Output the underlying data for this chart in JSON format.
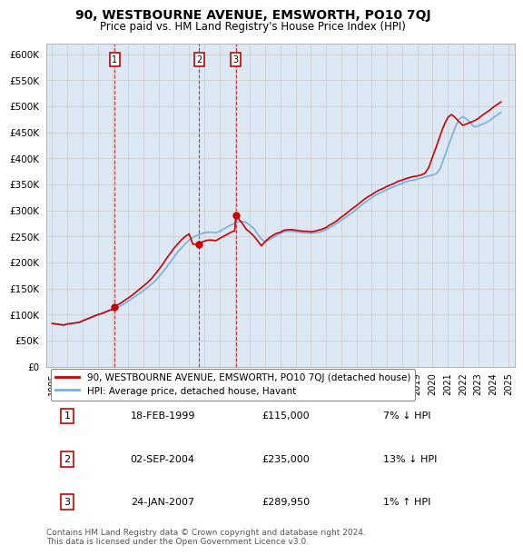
{
  "title": "90, WESTBOURNE AVENUE, EMSWORTH, PO10 7QJ",
  "subtitle": "Price paid vs. HM Land Registry's House Price Index (HPI)",
  "ylim": [
    0,
    620000
  ],
  "ytick_values": [
    0,
    50000,
    100000,
    150000,
    200000,
    250000,
    300000,
    350000,
    400000,
    450000,
    500000,
    550000,
    600000
  ],
  "sale_points": [
    {
      "year": 1999.12,
      "price": 115000,
      "label": "1"
    },
    {
      "year": 2004.67,
      "price": 235000,
      "label": "2"
    },
    {
      "year": 2007.07,
      "price": 289950,
      "label": "3"
    }
  ],
  "red_line_color": "#cc0000",
  "blue_line_color": "#7aaedc",
  "marker_box_color": "#cc0000",
  "grid_color": "#c8c8c8",
  "plot_bg_color": "#dce9f5",
  "legend_entries": [
    "90, WESTBOURNE AVENUE, EMSWORTH, PO10 7QJ (detached house)",
    "HPI: Average price, detached house, Havant"
  ],
  "table_rows": [
    {
      "num": "1",
      "date": "18-FEB-1999",
      "price": "£115,000",
      "hpi": "7% ↓ HPI"
    },
    {
      "num": "2",
      "date": "02-SEP-2004",
      "price": "£235,000",
      "hpi": "13% ↓ HPI"
    },
    {
      "num": "3",
      "date": "24-JAN-2007",
      "price": "£289,950",
      "hpi": "1% ↑ HPI"
    }
  ],
  "footnote": "Contains HM Land Registry data © Crown copyright and database right 2024.\nThis data is licensed under the Open Government Licence v3.0.",
  "years_hpi": [
    1995.0,
    1995.25,
    1995.5,
    1995.75,
    1996.0,
    1996.25,
    1996.5,
    1996.75,
    1997.0,
    1997.25,
    1997.5,
    1997.75,
    1998.0,
    1998.25,
    1998.5,
    1998.75,
    1999.0,
    1999.25,
    1999.5,
    1999.75,
    2000.0,
    2000.25,
    2000.5,
    2000.75,
    2001.0,
    2001.25,
    2001.5,
    2001.75,
    2002.0,
    2002.25,
    2002.5,
    2002.75,
    2003.0,
    2003.25,
    2003.5,
    2003.75,
    2004.0,
    2004.25,
    2004.5,
    2004.75,
    2005.0,
    2005.25,
    2005.5,
    2005.75,
    2006.0,
    2006.25,
    2006.5,
    2006.75,
    2007.0,
    2007.25,
    2007.5,
    2007.75,
    2008.0,
    2008.25,
    2008.5,
    2008.75,
    2009.0,
    2009.25,
    2009.5,
    2009.75,
    2010.0,
    2010.25,
    2010.5,
    2010.75,
    2011.0,
    2011.25,
    2011.5,
    2011.75,
    2012.0,
    2012.25,
    2012.5,
    2012.75,
    2013.0,
    2013.25,
    2013.5,
    2013.75,
    2014.0,
    2014.25,
    2014.5,
    2014.75,
    2015.0,
    2015.25,
    2015.5,
    2015.75,
    2016.0,
    2016.25,
    2016.5,
    2016.75,
    2017.0,
    2017.25,
    2017.5,
    2017.75,
    2018.0,
    2018.25,
    2018.5,
    2018.75,
    2019.0,
    2019.25,
    2019.5,
    2019.75,
    2020.0,
    2020.25,
    2020.5,
    2020.75,
    2021.0,
    2021.25,
    2021.5,
    2021.75,
    2022.0,
    2022.25,
    2022.5,
    2022.75,
    2023.0,
    2023.25,
    2023.5,
    2023.75,
    2024.0,
    2024.25,
    2024.5
  ],
  "hpi_values": [
    83000,
    82000,
    81000,
    80000,
    82000,
    83000,
    84000,
    85000,
    88000,
    91000,
    94000,
    97000,
    100000,
    102000,
    105000,
    108000,
    110000,
    113000,
    117000,
    121000,
    126000,
    131000,
    136000,
    141000,
    146000,
    152000,
    158000,
    164000,
    172000,
    181000,
    190000,
    200000,
    210000,
    220000,
    228000,
    236000,
    243000,
    248000,
    252000,
    255000,
    257000,
    258000,
    258000,
    257000,
    260000,
    264000,
    268000,
    272000,
    275000,
    278000,
    279000,
    277000,
    272000,
    265000,
    255000,
    245000,
    240000,
    243000,
    248000,
    252000,
    256000,
    259000,
    260000,
    260000,
    259000,
    258000,
    257000,
    257000,
    256000,
    257000,
    258000,
    260000,
    263000,
    267000,
    271000,
    276000,
    281000,
    286000,
    291000,
    296000,
    302000,
    308000,
    314000,
    319000,
    324000,
    329000,
    333000,
    336000,
    340000,
    343000,
    346000,
    349000,
    352000,
    355000,
    357000,
    358000,
    360000,
    362000,
    364000,
    366000,
    368000,
    370000,
    380000,
    400000,
    420000,
    440000,
    460000,
    475000,
    480000,
    475000,
    468000,
    460000,
    462000,
    465000,
    468000,
    472000,
    478000,
    483000,
    488000
  ],
  "years_red": [
    1995.0,
    1995.25,
    1995.5,
    1995.75,
    1996.0,
    1996.25,
    1996.5,
    1996.75,
    1997.0,
    1997.25,
    1997.5,
    1997.75,
    1998.0,
    1998.25,
    1998.5,
    1998.75,
    1999.0,
    1999.12,
    1999.25,
    1999.5,
    1999.75,
    2000.0,
    2000.25,
    2000.5,
    2000.75,
    2001.0,
    2001.25,
    2001.5,
    2001.75,
    2002.0,
    2002.25,
    2002.5,
    2002.75,
    2003.0,
    2003.25,
    2003.5,
    2003.75,
    2004.0,
    2004.25,
    2004.5,
    2004.67,
    2004.75,
    2005.0,
    2005.25,
    2005.5,
    2005.75,
    2006.0,
    2006.25,
    2006.5,
    2006.75,
    2007.0,
    2007.07,
    2007.25,
    2007.5,
    2007.75,
    2008.0,
    2008.25,
    2008.5,
    2008.75,
    2009.0,
    2009.25,
    2009.5,
    2009.75,
    2010.0,
    2010.25,
    2010.5,
    2010.75,
    2011.0,
    2011.25,
    2011.5,
    2011.75,
    2012.0,
    2012.25,
    2012.5,
    2012.75,
    2013.0,
    2013.25,
    2013.5,
    2013.75,
    2014.0,
    2014.25,
    2014.5,
    2014.75,
    2015.0,
    2015.25,
    2015.5,
    2015.75,
    2016.0,
    2016.25,
    2016.5,
    2016.75,
    2017.0,
    2017.25,
    2017.5,
    2017.75,
    2018.0,
    2018.25,
    2018.5,
    2018.75,
    2019.0,
    2019.25,
    2019.5,
    2019.75,
    2020.0,
    2020.25,
    2020.5,
    2020.75,
    2021.0,
    2021.25,
    2021.5,
    2021.75,
    2022.0,
    2022.25,
    2022.5,
    2022.75,
    2023.0,
    2023.25,
    2023.5,
    2023.75,
    2024.0,
    2024.25,
    2024.5
  ],
  "red_values": [
    83000,
    82000,
    81000,
    80000,
    82000,
    83000,
    84000,
    85000,
    88000,
    91000,
    94000,
    97000,
    100000,
    102000,
    105000,
    108000,
    110000,
    115000,
    118000,
    122000,
    127000,
    132000,
    137000,
    143000,
    149000,
    155000,
    161000,
    168000,
    177000,
    186000,
    196000,
    207000,
    217000,
    227000,
    235500,
    243500,
    250000,
    255000,
    235000,
    235000,
    235000,
    238000,
    241000,
    243000,
    243000,
    242000,
    246000,
    250000,
    254000,
    258000,
    261000,
    289950,
    284000,
    275000,
    264000,
    258000,
    251000,
    242000,
    232000,
    240000,
    247000,
    252000,
    256000,
    258000,
    262000,
    263000,
    263000,
    262000,
    261000,
    260000,
    260000,
    259000,
    260000,
    262000,
    264000,
    267000,
    272000,
    276000,
    281000,
    287000,
    292000,
    298000,
    304000,
    309000,
    315000,
    321000,
    326000,
    330000,
    335000,
    339000,
    342000,
    346000,
    349000,
    352000,
    356000,
    358000,
    361000,
    363000,
    365000,
    366000,
    368000,
    371000,
    382000,
    402000,
    422000,
    443000,
    463000,
    478000,
    484000,
    478000,
    470000,
    463000,
    466000,
    469000,
    472000,
    476000,
    482000,
    487000,
    492000,
    498000,
    503000,
    508000
  ]
}
